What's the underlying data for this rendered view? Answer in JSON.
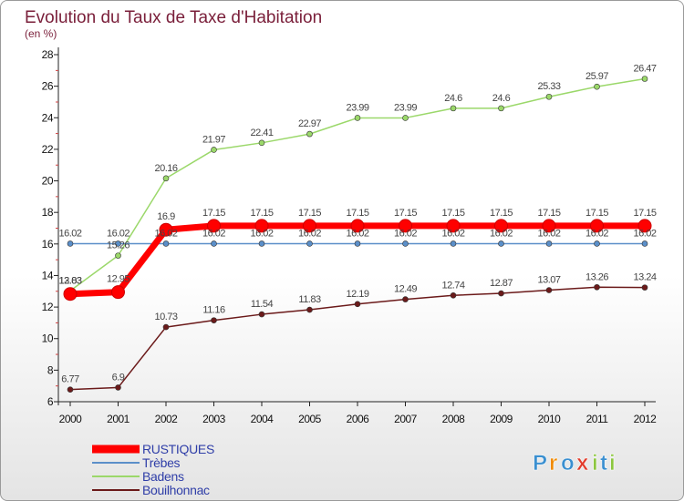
{
  "chart_data": {
    "type": "line",
    "title": "Evolution du Taux de Taxe d'Habitation",
    "subtitle": "(en %)",
    "categories": [
      "2000",
      "2001",
      "2002",
      "2003",
      "2004",
      "2005",
      "2006",
      "2007",
      "2008",
      "2009",
      "2010",
      "2011",
      "2012"
    ],
    "ylim": [
      6,
      28
    ],
    "yticks": [
      6,
      8,
      10,
      12,
      14,
      16,
      18,
      20,
      22,
      24,
      26,
      28
    ],
    "series": [
      {
        "name": "RUSTIQUES",
        "color": "#ff0000",
        "values": [
          12.83,
          12.95,
          16.9,
          17.15,
          17.15,
          17.15,
          17.15,
          17.15,
          17.15,
          17.15,
          17.15,
          17.15,
          17.15
        ],
        "labels": [
          "12.83",
          "12.95",
          "16.9",
          "17.15",
          "17.15",
          "17.15",
          "17.15",
          "17.15",
          "17.15",
          "17.15",
          "17.15",
          "17.15",
          "17.15"
        ]
      },
      {
        "name": "Trèbes",
        "color": "#5b8fc9",
        "values": [
          16.02,
          16.02,
          16.02,
          16.02,
          16.02,
          16.02,
          16.02,
          16.02,
          16.02,
          16.02,
          16.02,
          16.02,
          16.02
        ],
        "labels": [
          "16.02",
          "16.02",
          "16.02",
          "16.02",
          "16.02",
          "16.02",
          "16.02",
          "16.02",
          "16.02",
          "16.02",
          "16.02",
          "16.02",
          "16.02"
        ]
      },
      {
        "name": "Badens",
        "color": "#9bd86a",
        "values": [
          13.03,
          15.26,
          20.16,
          21.97,
          22.41,
          22.97,
          23.99,
          23.99,
          24.6,
          24.6,
          25.33,
          25.97,
          26.47
        ],
        "labels": [
          "13.03",
          "15.26",
          "20.16",
          "21.97",
          "22.41",
          "22.97",
          "23.99",
          "23.99",
          "24.6",
          "24.6",
          "25.33",
          "25.97",
          "26.47"
        ]
      },
      {
        "name": "Bouilhonnac",
        "color": "#6b1a1a",
        "values": [
          6.77,
          6.9,
          10.73,
          11.16,
          11.54,
          11.83,
          12.19,
          12.49,
          12.74,
          12.87,
          13.07,
          13.26,
          13.24
        ],
        "labels": [
          "6.77",
          "6.9",
          "10.73",
          "11.16",
          "11.54",
          "11.83",
          "12.19",
          "12.49",
          "12.74",
          "12.87",
          "13.07",
          "13.26",
          "13.24"
        ]
      }
    ],
    "legend_position": "bottom-left",
    "grid": false
  },
  "logo": {
    "text": "Proxiti",
    "letters": [
      "P",
      "r",
      "o",
      "x",
      "i",
      "t",
      "i"
    ],
    "colors": [
      "#3a8fd0",
      "#f08a00",
      "#3a8fd0",
      "#e23c2c",
      "#8cc63f",
      "#3a8fd0",
      "#8cc63f"
    ]
  }
}
